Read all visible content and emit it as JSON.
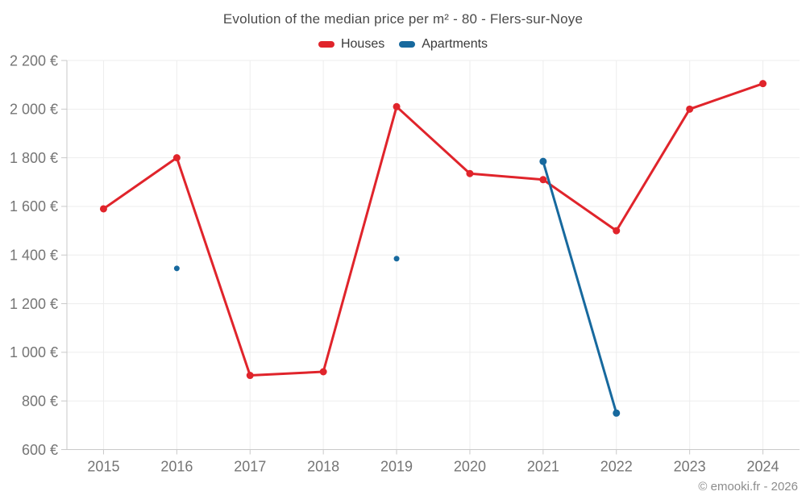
{
  "chart_data": {
    "type": "line",
    "title": "Evolution of the median price per m² - 80 - Flers-sur-Noye",
    "categories": [
      "2015",
      "2016",
      "2017",
      "2018",
      "2019",
      "2020",
      "2021",
      "2022",
      "2023",
      "2024"
    ],
    "series": [
      {
        "name": "Houses",
        "color": "#e0242b",
        "values": [
          1590,
          1800,
          905,
          920,
          2010,
          1735,
          1710,
          1500,
          2000,
          2105
        ]
      },
      {
        "name": "Apartments",
        "color": "#17699e",
        "values": [
          null,
          1345,
          null,
          null,
          1385,
          null,
          1785,
          750,
          null,
          null
        ]
      }
    ],
    "ylim": [
      600,
      2200
    ],
    "yticks": [
      600,
      800,
      1000,
      1200,
      1400,
      1600,
      1800,
      2000,
      2200
    ],
    "ytick_labels": [
      "600 €",
      "800 €",
      "1 000 €",
      "1 200 €",
      "1 400 €",
      "1 600 €",
      "1 800 €",
      "2 000 €",
      "2 200 €"
    ],
    "grid": true,
    "legend_position": "top",
    "currency": "€",
    "footer": "© emooki.fr - 2026"
  }
}
